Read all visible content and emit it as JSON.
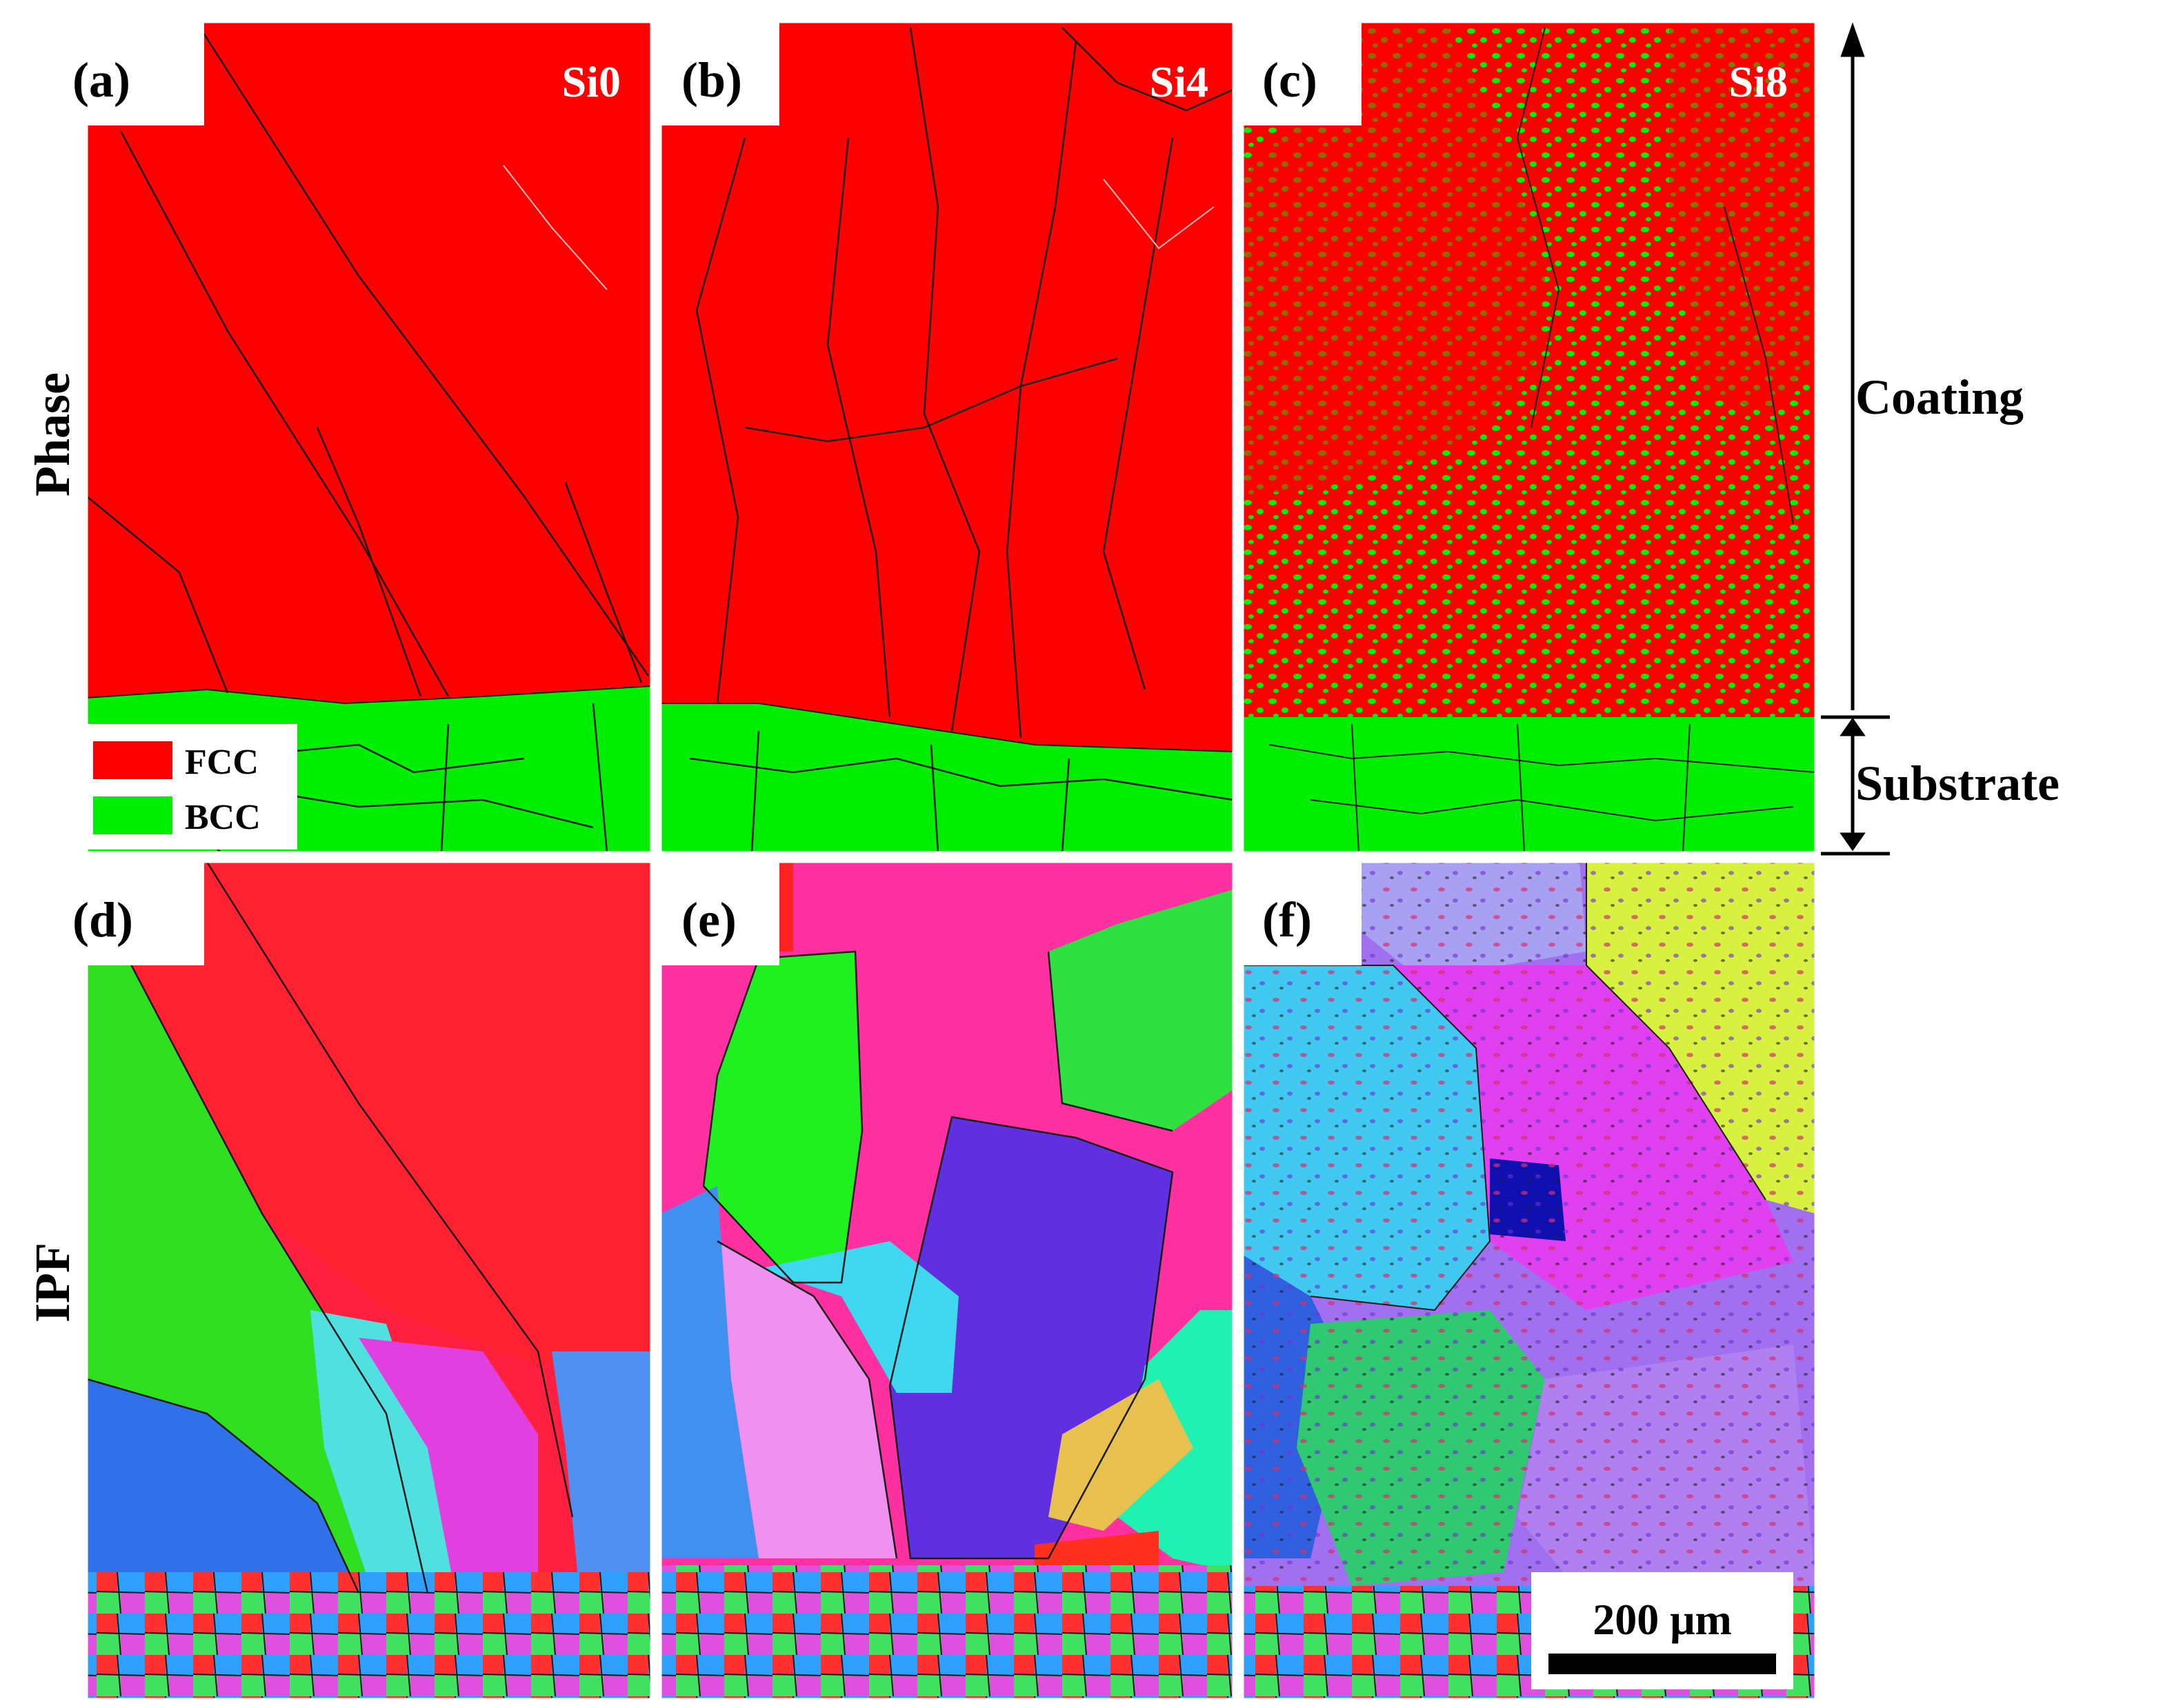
{
  "row_labels": {
    "top": "Phase",
    "bottom": "IPF"
  },
  "panels": [
    {
      "label": "(a)",
      "sample": "Si0"
    },
    {
      "label": "(b)",
      "sample": "Si4"
    },
    {
      "label": "(c)",
      "sample": "Si8"
    },
    {
      "label": "(d)",
      "sample": ""
    },
    {
      "label": "(e)",
      "sample": ""
    },
    {
      "label": "(f)",
      "sample": ""
    }
  ],
  "legend": [
    {
      "label": "FCC",
      "color": "#ff0000"
    },
    {
      "label": "BCC",
      "color": "#00ee00"
    }
  ],
  "annotations": {
    "coating": "Coating",
    "substrate": "Substrate"
  },
  "scale_bar": {
    "label": "200 μm"
  },
  "colors": {
    "fcc": "#ff0000",
    "bcc": "#00ee00",
    "boundary": "#1a1a1a"
  }
}
